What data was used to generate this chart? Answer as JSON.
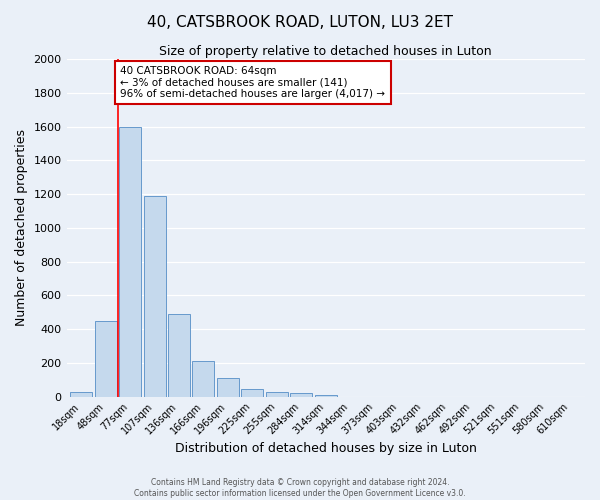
{
  "title": "40, CATSBROOK ROAD, LUTON, LU3 2ET",
  "subtitle": "Size of property relative to detached houses in Luton",
  "xlabel": "Distribution of detached houses by size in Luton",
  "ylabel": "Number of detached properties",
  "bar_labels": [
    "18sqm",
    "48sqm",
    "77sqm",
    "107sqm",
    "136sqm",
    "166sqm",
    "196sqm",
    "225sqm",
    "255sqm",
    "284sqm",
    "314sqm",
    "344sqm",
    "373sqm",
    "403sqm",
    "432sqm",
    "462sqm",
    "492sqm",
    "521sqm",
    "551sqm",
    "580sqm",
    "610sqm"
  ],
  "bar_values": [
    30,
    450,
    1600,
    1190,
    490,
    210,
    110,
    45,
    25,
    20,
    10,
    0,
    0,
    0,
    0,
    0,
    0,
    0,
    0,
    0,
    0
  ],
  "bar_color": "#c5d9ed",
  "bar_edge_color": "#6699cc",
  "ylim": [
    0,
    2000
  ],
  "yticks": [
    0,
    200,
    400,
    600,
    800,
    1000,
    1200,
    1400,
    1600,
    1800,
    2000
  ],
  "red_line_x": 1.5,
  "annotation_title": "40 CATSBROOK ROAD: 64sqm",
  "annotation_line1": "← 3% of detached houses are smaller (141)",
  "annotation_line2": "96% of semi-detached houses are larger (4,017) →",
  "annotation_box_color": "#ffffff",
  "annotation_box_edge": "#cc0000",
  "footer1": "Contains HM Land Registry data © Crown copyright and database right 2024.",
  "footer2": "Contains public sector information licensed under the Open Government Licence v3.0.",
  "bg_color": "#eaf0f8",
  "plot_bg_color": "#eaf0f8",
  "grid_color": "#ffffff"
}
